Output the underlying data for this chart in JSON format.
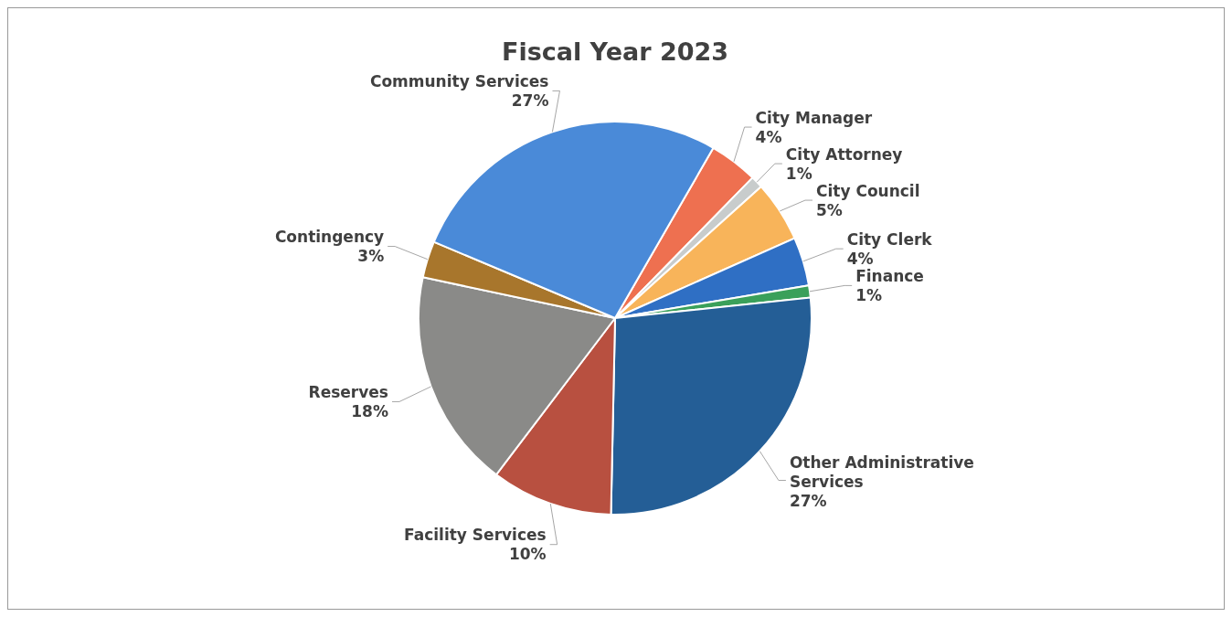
{
  "chart_data": {
    "type": "pie",
    "title": "Fiscal Year 2023",
    "categories": [
      "City Manager",
      "City Attorney",
      "City Council",
      "City Clerk",
      "Finance",
      "Other Administrative Services",
      "Facility Services",
      "Reserves",
      "Contingency",
      "Community Services"
    ],
    "values": [
      4,
      1,
      5,
      4,
      1,
      27,
      10,
      18,
      3,
      27
    ],
    "value_labels": [
      "4%",
      "1%",
      "5%",
      "4%",
      "1%",
      "27%",
      "10%",
      "18%",
      "3%",
      "27%"
    ],
    "colors": [
      "#ee7050",
      "#c8cccc",
      "#f8b45a",
      "#2f6fc4",
      "#3aa05a",
      "#245e96",
      "#b85040",
      "#8a8a88",
      "#a8762c",
      "#4a8ad8"
    ]
  }
}
